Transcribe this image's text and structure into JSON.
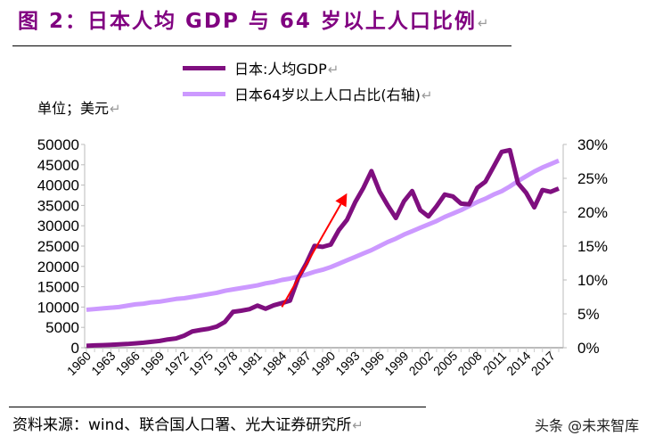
{
  "title": "图 2：日本人均 GDP 与 64 岁以上人口比例",
  "unit_label": "单位；美元",
  "source": "资料来源：wind、联合国人口署、光大证券研究所",
  "watermark": "头条 @未来智库",
  "colors": {
    "title": "#800080",
    "gdp": "#7f0f7f",
    "aged": "#cc99ff",
    "arrow": "#ff0000"
  },
  "chart_data": {
    "type": "line",
    "title": "图 2：日本人均 GDP 与 64 岁以上人口比例",
    "ylabel": "单位；美元",
    "legend_placement": "top",
    "grid": false,
    "x": [
      1960,
      1961,
      1962,
      1963,
      1964,
      1965,
      1966,
      1967,
      1968,
      1969,
      1970,
      1971,
      1972,
      1973,
      1974,
      1975,
      1976,
      1977,
      1978,
      1979,
      1980,
      1981,
      1982,
      1983,
      1984,
      1985,
      1986,
      1987,
      1988,
      1989,
      1990,
      1991,
      1992,
      1993,
      1994,
      1995,
      1996,
      1997,
      1998,
      1999,
      2000,
      2001,
      2002,
      2003,
      2004,
      2005,
      2006,
      2007,
      2008,
      2009,
      2010,
      2011,
      2012,
      2013,
      2014,
      2015,
      2016,
      2017,
      2018
    ],
    "x_tick_labels": [
      "1960",
      "1963",
      "1966",
      "1969",
      "1972",
      "1975",
      "1978",
      "1981",
      "1984",
      "1987",
      "1990",
      "1993",
      "1996",
      "1999",
      "2002",
      "2005",
      "2008",
      "2011",
      "2014",
      "2017"
    ],
    "y_left": {
      "lim": [
        0,
        50000
      ],
      "ticks": [
        "0",
        "5000",
        "10000",
        "15000",
        "20000",
        "25000",
        "30000",
        "35000",
        "40000",
        "45000",
        "50000"
      ]
    },
    "y_right": {
      "lim": [
        0,
        30
      ],
      "ticks": [
        "0%",
        "5%",
        "10%",
        "15%",
        "20%",
        "25%",
        "30%"
      ]
    },
    "series": [
      {
        "name": "日本:人均GDP",
        "axis": "left",
        "color": "#7f0f7f",
        "values": [
          479,
          564,
          634,
          717,
          835,
          919,
          1059,
          1229,
          1451,
          1669,
          2037,
          2272,
          2967,
          3997,
          4354,
          4659,
          5197,
          6335,
          8821,
          9105,
          9463,
          10361,
          9578,
          10425,
          10984,
          11585,
          17112,
          20745,
          25051,
          24813,
          25359,
          28925,
          31465,
          35766,
          39269,
          43440,
          38437,
          35022,
          31903,
          36027,
          38532,
          33846,
          32289,
          34808,
          37689,
          37218,
          35434,
          35275,
          39339,
          40855,
          44508,
          48168,
          48603,
          40454,
          38109,
          34524,
          38794,
          38332,
          39159
        ]
      },
      {
        "name": "日本64岁以上人口占比(右轴)",
        "axis": "right",
        "color": "#cc99ff",
        "values": [
          5.6,
          5.7,
          5.8,
          5.9,
          6.0,
          6.2,
          6.4,
          6.5,
          6.7,
          6.8,
          7.0,
          7.2,
          7.3,
          7.5,
          7.7,
          7.9,
          8.1,
          8.4,
          8.6,
          8.8,
          9.0,
          9.2,
          9.5,
          9.7,
          10.0,
          10.2,
          10.5,
          10.8,
          11.2,
          11.5,
          11.9,
          12.4,
          12.9,
          13.4,
          13.9,
          14.4,
          15.0,
          15.6,
          16.1,
          16.7,
          17.2,
          17.7,
          18.2,
          18.7,
          19.3,
          19.8,
          20.3,
          20.9,
          21.5,
          22.0,
          22.6,
          23.1,
          23.8,
          24.6,
          25.3,
          26.0,
          26.6,
          27.1,
          27.6
        ]
      }
    ],
    "annotations": [
      {
        "type": "arrow",
        "color": "#ff0000",
        "from": {
          "x": 1984,
          "y": 10000
        },
        "to": {
          "x": 1992,
          "y": 38000
        }
      }
    ]
  }
}
